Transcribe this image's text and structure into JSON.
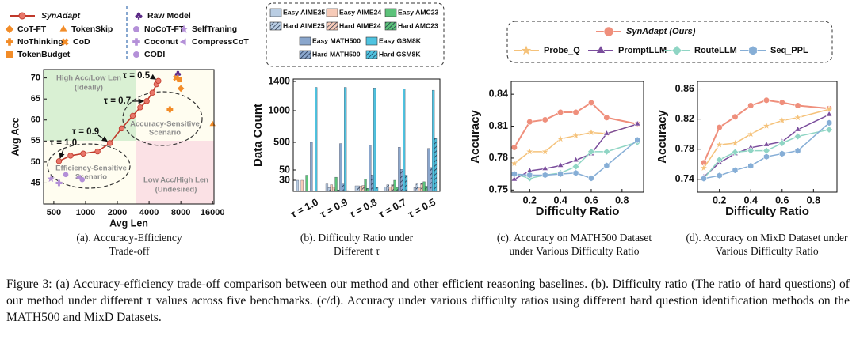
{
  "chart_data": [
    {
      "type": "scatter",
      "xlabel": "Avg Len",
      "ylabel": "Avg Acc",
      "xscale": "log",
      "xlim": [
        400,
        16500
      ],
      "ylim": [
        40,
        72
      ],
      "xticks": [
        500,
        1000,
        2000,
        4000,
        8000,
        16000
      ],
      "yticks": [
        45,
        50,
        55,
        60,
        65,
        70
      ],
      "series": [
        {
          "name": "SynAdapt",
          "color": "#c0392b",
          "marker": "circle",
          "line": true,
          "x": [
            560,
            720,
            950,
            1300,
            1700,
            2200,
            2800,
            3300,
            3800,
            4300,
            4700,
            4900
          ],
          "y": [
            50.2,
            51.5,
            52.0,
            52.5,
            54.5,
            58.0,
            61.0,
            63.0,
            64.5,
            66.5,
            68.5,
            69.3
          ]
        },
        {
          "name": "Raw Model",
          "color": "#5b2a86",
          "marker": "club",
          "x": [
            7500
          ],
          "y": [
            71
          ]
        },
        {
          "name": "CoT-FT",
          "color": "#f28c28",
          "marker": "diamond",
          "x": [
            8000
          ],
          "y": [
            67.5
          ]
        },
        {
          "name": "TokenSkip",
          "color": "#f28c28",
          "marker": "triangle",
          "x": [
            16000
          ],
          "y": [
            59
          ]
        },
        {
          "name": "NoThinking",
          "color": "#f28c28",
          "marker": "plus",
          "x": [
            6300
          ],
          "y": [
            62.5
          ]
        },
        {
          "name": "CoD",
          "color": "#f28c28",
          "marker": "x",
          "x": [
            7200
          ],
          "y": [
            70
          ]
        },
        {
          "name": "TokenBudget",
          "color": "#f28c28",
          "marker": "square",
          "x": [
            7800
          ],
          "y": [
            69.6
          ]
        },
        {
          "name": "NoCoT-FT",
          "color": "#b490d8",
          "marker": "circle",
          "x": [
            650
          ],
          "y": [
            47
          ]
        },
        {
          "name": "SelfTraning",
          "color": "#b490d8",
          "marker": "star",
          "x": [
            470
          ],
          "y": [
            46
          ]
        },
        {
          "name": "Coconut",
          "color": "#b490d8",
          "marker": "plus",
          "x": [
            560
          ],
          "y": [
            45
          ]
        },
        {
          "name": "CompressCoT",
          "color": "#b490d8",
          "marker": "triangle-left",
          "x": [
            870
          ],
          "y": [
            46.3
          ]
        },
        {
          "name": "CODI",
          "color": "#b490d8",
          "marker": "circle",
          "x": [
            930
          ],
          "y": [
            45.8
          ]
        }
      ],
      "annotations": [
        "τ = 1.0",
        "τ = 0.9",
        "τ = 0.7",
        "τ = 0.5"
      ],
      "regions": [
        [
          "High Acc/Low Len",
          "(Ideally)"
        ],
        [
          "Accuracy-Sensitive",
          "Scenario"
        ],
        [
          "Efficiency-Sensitive",
          "Scenario"
        ],
        [
          "Low Acc/High Len",
          "(Undesired)"
        ]
      ],
      "caption": "(a). Accuracy-Efficiency Trade-off"
    },
    {
      "type": "bar",
      "ylabel": "Data Count",
      "yscale": "piecewise",
      "ylim": [
        0,
        1400
      ],
      "yticks": [
        30,
        50,
        500,
        1000,
        1400
      ],
      "categories": [
        "τ = 1.0",
        "τ = 0.9",
        "τ = 0.8",
        "τ = 0.7",
        "τ = 0.5"
      ],
      "series": [
        {
          "name": "Easy AIME25",
          "color": "#b9cde3",
          "hatch": false,
          "values": [
            30,
            20,
            15,
            12,
            10
          ]
        },
        {
          "name": "Hard AIME25",
          "color": "#b9cde3",
          "hatch": true,
          "values": [
            0,
            10,
            15,
            18,
            20
          ]
        },
        {
          "name": "Easy AIME24",
          "color": "#f7cbb8",
          "hatch": false,
          "values": [
            30,
            18,
            14,
            12,
            9
          ]
        },
        {
          "name": "Hard AIME24",
          "color": "#f7cbb8",
          "hatch": true,
          "values": [
            0,
            12,
            16,
            18,
            21
          ]
        },
        {
          "name": "Easy AMC23",
          "color": "#5cc27a",
          "hatch": false,
          "values": [
            40,
            36,
            32,
            30,
            26
          ]
        },
        {
          "name": "Hard AMC23",
          "color": "#5cc27a",
          "hatch": true,
          "values": [
            0,
            4,
            8,
            10,
            14
          ]
        },
        {
          "name": "Easy MATH500",
          "color": "#8aa6cc",
          "hatch": false,
          "values": [
            500,
            480,
            450,
            420,
            400
          ]
        },
        {
          "name": "Hard MATH500",
          "color": "#8aa6cc",
          "hatch": true,
          "values": [
            0,
            20,
            40,
            60,
            90
          ]
        },
        {
          "name": "Easy GSM8K",
          "color": "#4fc3e0",
          "hatch": false,
          "values": [
            1319,
            1319,
            1310,
            1300,
            1280
          ]
        },
        {
          "name": "Hard GSM8K",
          "color": "#4fc3e0",
          "hatch": true,
          "values": [
            0,
            2,
            10,
            40,
            560
          ]
        }
      ],
      "caption": "(b). Difficulty Ratio under Different τ"
    },
    {
      "type": "line",
      "xlabel": "Difficulty Ratio",
      "ylabel": "Accuracy",
      "x": [
        0.1,
        0.2,
        0.3,
        0.4,
        0.5,
        0.6,
        0.7,
        0.9
      ],
      "xlim": [
        0.08,
        0.94
      ],
      "ylim": [
        0.748,
        0.852
      ],
      "xticks": [
        0.2,
        0.4,
        0.6,
        0.8
      ],
      "yticks": [
        0.75,
        0.78,
        0.81,
        0.84
      ],
      "series": [
        {
          "name": "SynAdapt (Ours)",
          "color": "#ef8f7c",
          "marker": "circle",
          "values": [
            0.79,
            0.814,
            0.816,
            0.823,
            0.823,
            0.832,
            0.818,
            0.812
          ]
        },
        {
          "name": "Probe_Q",
          "color": "#f5c27a",
          "marker": "star",
          "values": [
            0.775,
            0.786,
            0.786,
            0.798,
            0.801,
            0.804,
            0.803,
            0.812
          ]
        },
        {
          "name": "PromptLLM",
          "color": "#7a4d9c",
          "marker": "triangle",
          "values": [
            0.76,
            0.768,
            0.77,
            0.773,
            0.778,
            0.784,
            0.803,
            0.812
          ]
        },
        {
          "name": "RouteLLM",
          "color": "#8fd5c4",
          "marker": "diamond",
          "values": [
            0.765,
            0.761,
            0.764,
            0.766,
            0.772,
            0.786,
            0.786,
            0.795
          ]
        },
        {
          "name": "Seq_PPL",
          "color": "#86aed6",
          "marker": "hexagon",
          "values": [
            0.765,
            0.764,
            0.764,
            0.765,
            0.766,
            0.761,
            0.773,
            0.797
          ]
        }
      ],
      "caption": "(c). Accuracy on MATH500 Dataset under Various Difficulty Ratio"
    },
    {
      "type": "line",
      "xlabel": "Difficulty Ratio",
      "ylabel": "Accuracy",
      "x": [
        0.1,
        0.2,
        0.3,
        0.4,
        0.5,
        0.6,
        0.7,
        0.9
      ],
      "xlim": [
        0.06,
        0.95
      ],
      "ylim": [
        0.723,
        0.87
      ],
      "xticks": [
        0.2,
        0.4,
        0.6,
        0.8
      ],
      "yticks": [
        0.74,
        0.78,
        0.82,
        0.86
      ],
      "series": [
        {
          "color": "#ef8f7c",
          "marker": "circle",
          "values": [
            0.762,
            0.809,
            0.823,
            0.838,
            0.845,
            0.842,
            0.838,
            0.834
          ]
        },
        {
          "color": "#f5c27a",
          "marker": "star",
          "values": [
            0.755,
            0.786,
            0.788,
            0.8,
            0.811,
            0.818,
            0.822,
            0.833
          ]
        },
        {
          "color": "#7a4d9c",
          "marker": "triangle",
          "values": [
            0.743,
            0.762,
            0.774,
            0.782,
            0.786,
            0.79,
            0.806,
            0.826
          ]
        },
        {
          "color": "#8fd5c4",
          "marker": "diamond",
          "values": [
            0.741,
            0.766,
            0.776,
            0.778,
            0.778,
            0.788,
            0.797,
            0.806
          ]
        },
        {
          "color": "#86aed6",
          "marker": "hexagon",
          "values": [
            0.741,
            0.745,
            0.752,
            0.758,
            0.77,
            0.774,
            0.778,
            0.815
          ]
        }
      ],
      "caption": "(d). Accuracy on MixD Dataset under Various Difficulty Ratio"
    }
  ],
  "figure_caption": "Figure 3: (a) Accuracy-efficiency trade-off comparison between our method and other efficient reasoning baselines. (b). Difficulty ratio (The ratio of hard questions) of our method under different τ values across five benchmarks. (c/d). Accuracy under various difficulty ratios using different hard question identification methods on the MATH500 and MixD Datasets."
}
